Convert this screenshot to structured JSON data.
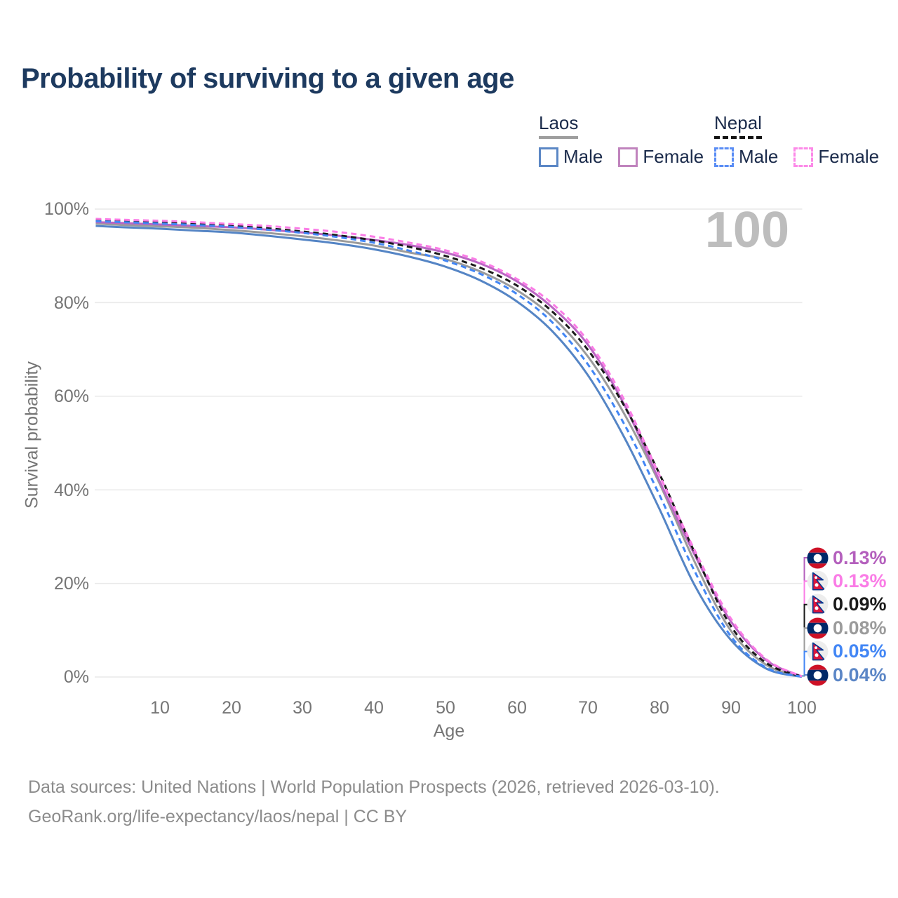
{
  "title": "Probability of surviving to a given age",
  "watermark": "100",
  "legend": {
    "groups": [
      {
        "label": "Laos",
        "line_style": "solid",
        "items": [
          {
            "label": "Male",
            "color": "#5b87c5"
          },
          {
            "label": "Female",
            "color": "#c083bd"
          }
        ]
      },
      {
        "label": "Nepal",
        "line_style": "dashed",
        "items": [
          {
            "label": "Male",
            "color": "#5a8df5"
          },
          {
            "label": "Female",
            "color": "#fc8ae8"
          }
        ]
      }
    ]
  },
  "chart_data": {
    "type": "line",
    "title": "Probability of surviving to a given age",
    "xlabel": "Age",
    "ylabel": "Survival probability",
    "xlim": [
      1,
      100
    ],
    "ylim": [
      0,
      100
    ],
    "grid": "horizontal",
    "legend_position": "top-right",
    "x_ticks": [
      10,
      20,
      30,
      40,
      50,
      60,
      70,
      80,
      90,
      100
    ],
    "x_tick_labels": [
      "10",
      "20",
      "30",
      "40",
      "50",
      "60",
      "70",
      "80",
      "90",
      "100"
    ],
    "y_ticks": [
      0,
      20,
      40,
      60,
      80,
      100
    ],
    "y_tick_labels": [
      "0%",
      "20%",
      "40%",
      "60%",
      "80%",
      "100%"
    ],
    "ages": [
      1,
      5,
      10,
      15,
      20,
      25,
      30,
      35,
      40,
      45,
      50,
      55,
      60,
      65,
      70,
      75,
      80,
      85,
      90,
      95,
      100
    ],
    "series": [
      {
        "id": "laos-total",
        "name": "Laos (both sexes)",
        "country": "Laos",
        "sex": "total",
        "color": "#9b9b9b",
        "dash": false,
        "end_value_pct": 0.08,
        "values": [
          96.9,
          96.6,
          96.3,
          96.0,
          95.5,
          94.9,
          94.2,
          93.3,
          92.2,
          90.7,
          89.3,
          86.6,
          82.7,
          77.0,
          68.5,
          56.5,
          41.5,
          24.5,
          10.0,
          2.6,
          0.08
        ]
      },
      {
        "id": "laos-male",
        "name": "Laos Male",
        "country": "Laos",
        "sex": "male",
        "color": "#5585c5",
        "dash": false,
        "end_value_pct": 0.04,
        "values": [
          96.4,
          96.1,
          95.8,
          95.4,
          95.0,
          94.3,
          93.5,
          92.6,
          91.4,
          89.8,
          87.7,
          84.7,
          80.3,
          73.9,
          64.5,
          51.5,
          36.0,
          19.5,
          8.0,
          1.8,
          0.04
        ]
      },
      {
        "id": "laos-female",
        "name": "Laos Female",
        "country": "Laos",
        "sex": "female",
        "color": "#bb66c4",
        "dash": false,
        "end_value_pct": 0.13,
        "values": [
          97.2,
          97.0,
          96.7,
          96.4,
          96.1,
          95.6,
          95.0,
          94.3,
          93.4,
          92.3,
          90.7,
          88.3,
          84.6,
          79.0,
          71.0,
          58.5,
          42.0,
          26.0,
          12.0,
          3.6,
          0.13
        ]
      },
      {
        "id": "nepal-total",
        "name": "Nepal (both sexes)",
        "country": "Nepal",
        "sex": "total",
        "color": "#1a1a1a",
        "dash": true,
        "end_value_pct": 0.09,
        "values": [
          97.6,
          97.4,
          97.1,
          96.8,
          96.4,
          95.9,
          95.2,
          94.4,
          93.3,
          91.9,
          90.0,
          87.4,
          83.7,
          78.1,
          69.9,
          58.2,
          43.5,
          26.5,
          11.0,
          3.0,
          0.09
        ]
      },
      {
        "id": "nepal-male",
        "name": "Nepal Male",
        "country": "Nepal",
        "sex": "male",
        "color": "#4286f5",
        "dash": true,
        "end_value_pct": 0.05,
        "values": [
          97.4,
          97.2,
          96.9,
          96.6,
          96.2,
          95.6,
          94.9,
          94.0,
          92.8,
          91.1,
          89.0,
          86.1,
          81.9,
          75.8,
          66.8,
          54.3,
          39.0,
          22.5,
          8.8,
          2.0,
          0.05
        ]
      },
      {
        "id": "nepal-female",
        "name": "Nepal Female",
        "country": "Nepal",
        "sex": "female",
        "color": "#fa7ce6",
        "dash": true,
        "end_value_pct": 0.13,
        "values": [
          97.9,
          97.7,
          97.5,
          97.2,
          96.8,
          96.4,
          95.8,
          95.1,
          94.1,
          92.8,
          91.2,
          88.8,
          85.1,
          79.8,
          71.8,
          59.5,
          43.2,
          27.0,
          12.6,
          3.8,
          0.13
        ]
      }
    ]
  },
  "end_labels": [
    {
      "value": "0.13%",
      "series": "Laos Female",
      "flag": "laos",
      "color": "#b460bd"
    },
    {
      "value": "0.13%",
      "series": "Nepal Female",
      "flag": "nepal",
      "color": "#fa7ce6"
    },
    {
      "value": "0.09%",
      "series": "Nepal (both sexes)",
      "flag": "nepal",
      "color": "#1a1a1a"
    },
    {
      "value": "0.08%",
      "series": "Laos (both sexes)",
      "flag": "laos",
      "color": "#9b9b9b"
    },
    {
      "value": "0.05%",
      "series": "Nepal Male",
      "flag": "nepal",
      "color": "#4286f5"
    },
    {
      "value": "0.04%",
      "series": "Laos Male",
      "flag": "laos",
      "color": "#5b86c6"
    }
  ],
  "footer": {
    "line1": "Data sources: United Nations | World Population Prospects (2026, retrieved 2026-03-10).",
    "line2": "GeoRank.org/life-expectancy/laos/nepal | CC BY"
  }
}
